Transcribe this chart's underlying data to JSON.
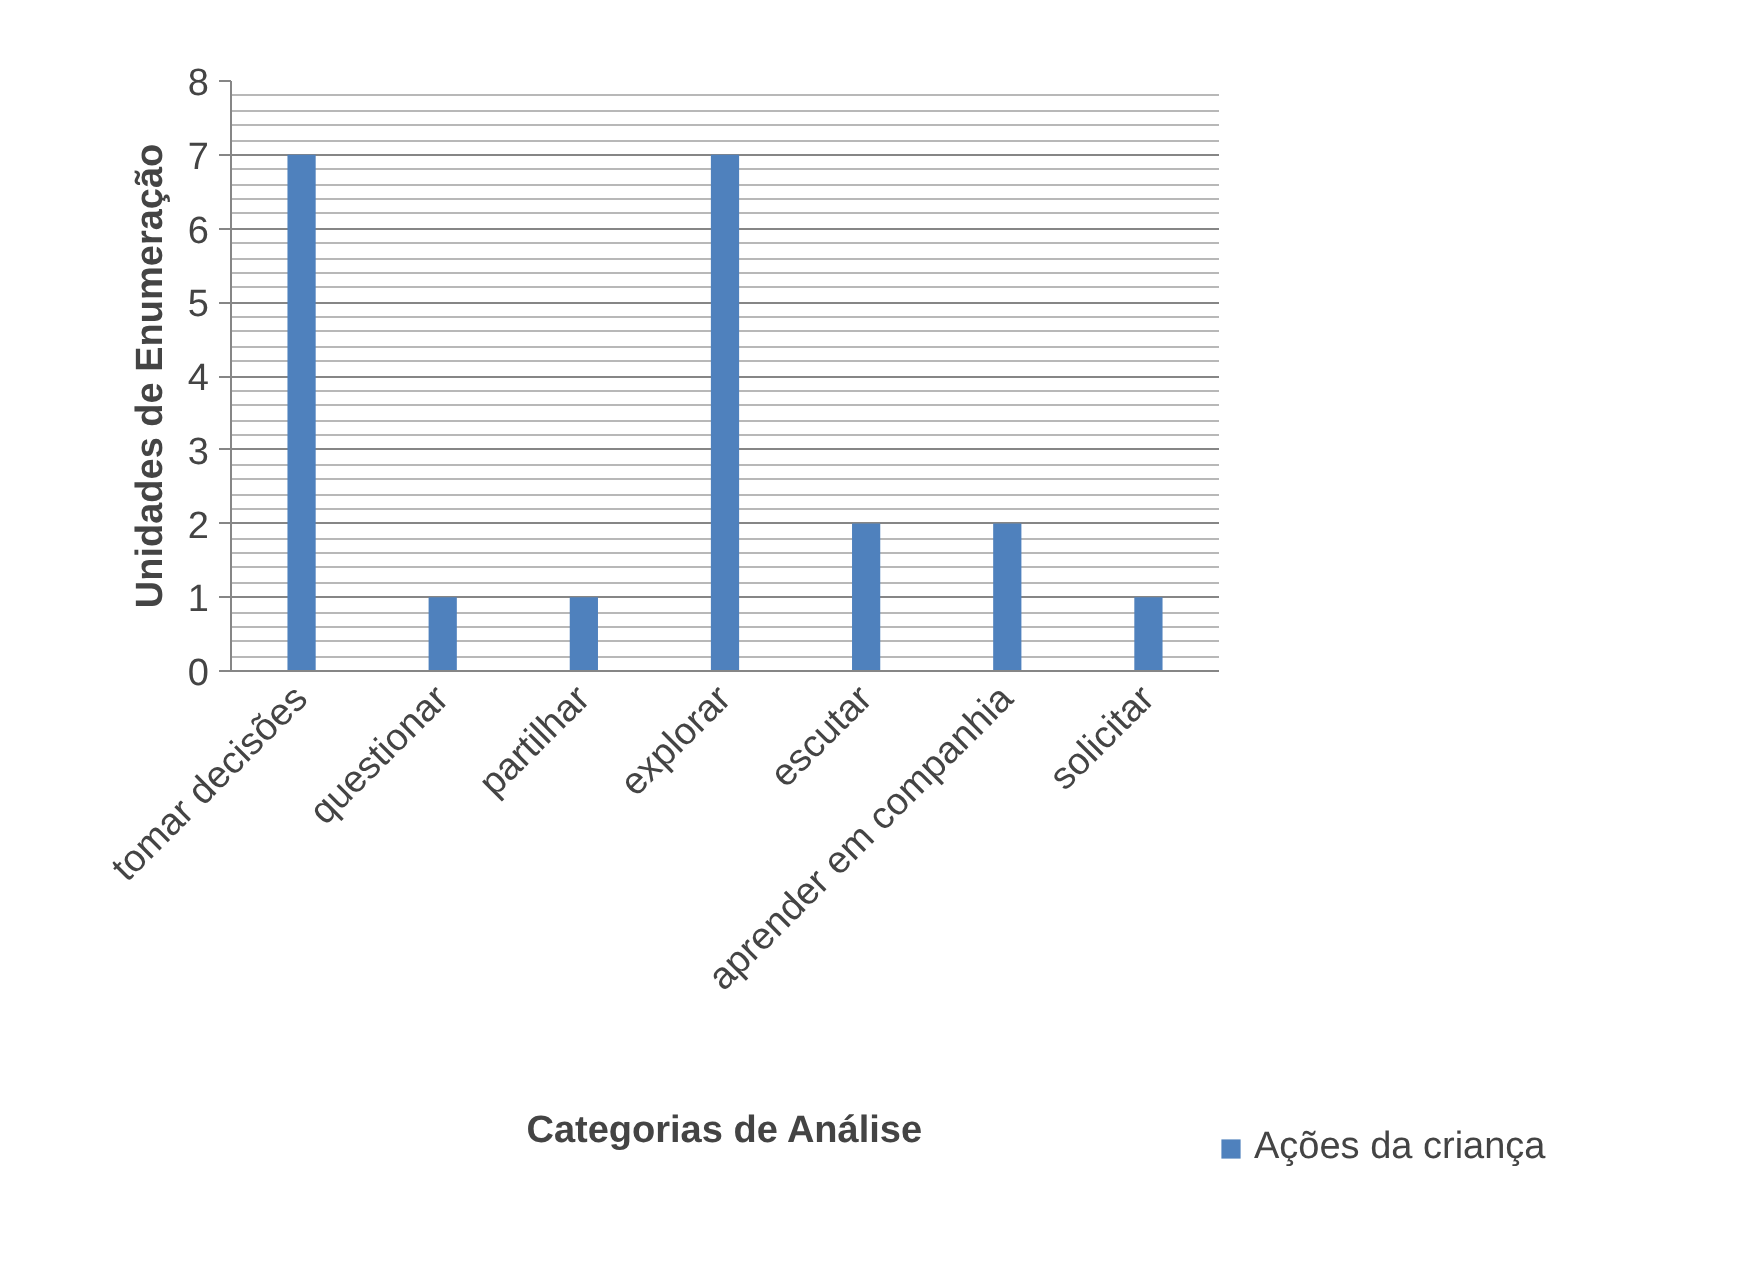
{
  "chart_data": {
    "type": "bar",
    "xlabel": "Categorias de Análise",
    "ylabel": "Unidades de Enumeração",
    "categories": [
      "tomar decisões",
      "questionar",
      "partilhar",
      "explorar",
      "escutar",
      "aprender em companhia",
      "solicitar"
    ],
    "series": [
      {
        "name": "Ações da criança",
        "color": "#4f81bd",
        "values": [
          7,
          1,
          1,
          7,
          2,
          2,
          1
        ]
      }
    ],
    "ylim": [
      0,
      8
    ],
    "yticks": [
      0,
      1,
      2,
      3,
      4,
      5,
      6,
      7,
      8
    ],
    "grid": "y",
    "legend": "right"
  }
}
